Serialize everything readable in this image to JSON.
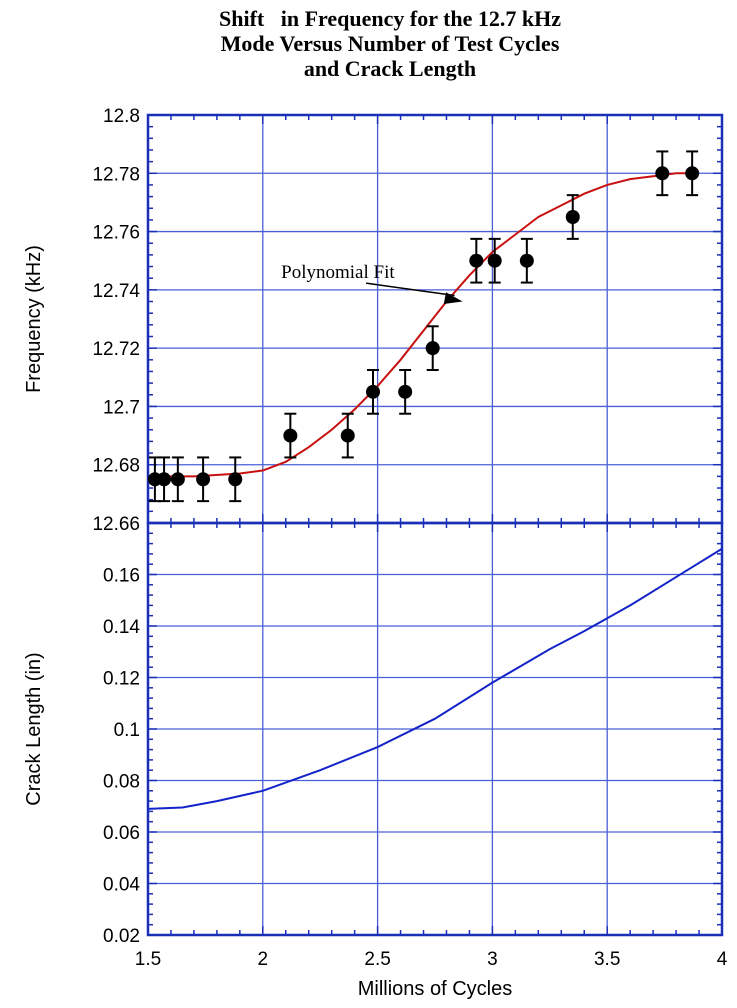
{
  "title_lines": [
    "Shift   in Frequency for the 12.7 kHz",
    "Mode Versus Number of Test Cycles",
    "and Crack Length"
  ],
  "colors": {
    "grid": "#4a5fd6",
    "frame": "#1a2fb8",
    "fit_line": "#c81010",
    "crack_line": "#1424c8",
    "markers": "#000000"
  },
  "chart_data": [
    {
      "type": "scatter",
      "panel": "top",
      "title": "Shift   in Frequency for the 12.7 kHz Mode Versus Number of Test Cycles and Crack Length",
      "xlabel": "Millions of Cycles",
      "ylabel": "Frequency (kHz)",
      "xlim": [
        1.5,
        4
      ],
      "ylim": [
        12.66,
        12.8
      ],
      "xticks": [
        "1.5",
        "2",
        "2.5",
        "3",
        "3.5",
        "4"
      ],
      "yticks": [
        "12.66",
        "12.68",
        "12.7",
        "12.72",
        "12.74",
        "12.76",
        "12.78",
        "12.8"
      ],
      "grid": true,
      "error_bar": 0.0075,
      "series": [
        {
          "kind": "points",
          "x": [
            1.53,
            1.57,
            1.63,
            1.74,
            1.88,
            2.12,
            2.37,
            2.48,
            2.62,
            2.74,
            2.93,
            3.01,
            3.15,
            3.35,
            3.74,
            3.87
          ],
          "y": [
            12.675,
            12.675,
            12.675,
            12.675,
            12.675,
            12.69,
            12.69,
            12.705,
            12.705,
            12.72,
            12.75,
            12.75,
            12.75,
            12.765,
            12.78,
            12.78
          ]
        },
        {
          "kind": "line",
          "x": [
            1.55,
            1.7,
            1.9,
            2.0,
            2.1,
            2.2,
            2.3,
            2.4,
            2.5,
            2.6,
            2.7,
            2.8,
            2.9,
            3.0,
            3.1,
            3.2,
            3.3,
            3.4,
            3.5,
            3.6,
            3.7,
            3.8,
            3.9
          ],
          "y": [
            12.676,
            12.676,
            12.677,
            12.678,
            12.681,
            12.686,
            12.692,
            12.699,
            12.707,
            12.716,
            12.726,
            12.736,
            12.745,
            12.753,
            12.759,
            12.765,
            12.769,
            12.773,
            12.776,
            12.778,
            12.779,
            12.78,
            12.78
          ]
        }
      ],
      "annotations": [
        {
          "text": "Polynomial Fit",
          "x": 2.08,
          "y": 12.744,
          "arrow_to": [
            2.87,
            12.736
          ]
        }
      ]
    },
    {
      "type": "line",
      "panel": "bottom",
      "xlabel": "Millions of Cycles",
      "ylabel": "Crack Length (in)",
      "xlim": [
        1.5,
        4
      ],
      "ylim": [
        0.02,
        0.18
      ],
      "xticks": [
        "1.5",
        "2",
        "2.5",
        "3",
        "3.5",
        "4"
      ],
      "yticks": [
        "0.02",
        "0.04",
        "0.06",
        "0.08",
        "0.1",
        "0.12",
        "0.14",
        "0.16"
      ],
      "grid": true,
      "series": [
        {
          "x": [
            1.5,
            1.65,
            1.8,
            2.0,
            2.25,
            2.5,
            2.75,
            3.0,
            3.25,
            3.4,
            3.6,
            3.8,
            4.0
          ],
          "y": [
            0.069,
            0.0695,
            0.072,
            0.076,
            0.084,
            0.093,
            0.104,
            0.118,
            0.131,
            0.138,
            0.148,
            0.159,
            0.17
          ]
        }
      ]
    }
  ]
}
